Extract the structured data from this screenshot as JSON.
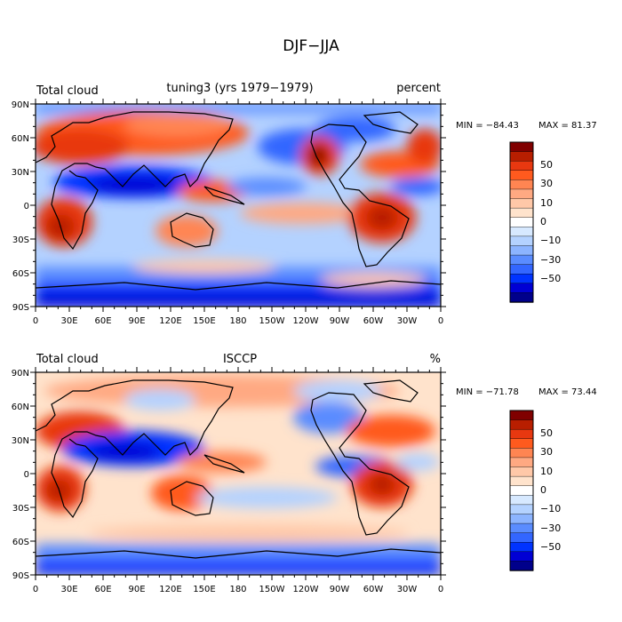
{
  "title": "DJF−JJA",
  "colors": {
    "scale": [
      "#00008b",
      "#0000d4",
      "#0033ff",
      "#3366ff",
      "#5a8cff",
      "#8cb4ff",
      "#b4d2ff",
      "#d7e9ff",
      "#ffffff",
      "#ffe3cc",
      "#ffc8a8",
      "#ffa982",
      "#ff8552",
      "#ff5a1e",
      "#e83810",
      "#b81e00",
      "#800000"
    ],
    "land_outline": "#000000"
  },
  "panels": [
    {
      "left_label": "Total cloud",
      "center_label": "tuning3 (yrs 1979−1979)",
      "right_label": "percent",
      "min_text": "MIN = −84.43",
      "max_text": "MAX =  81.37",
      "min": -84.43,
      "max": 81.37
    },
    {
      "left_label": "Total cloud",
      "center_label": "ISCCP",
      "right_label": "%",
      "min_text": "MIN = −71.78",
      "max_text": "MAX =  73.44",
      "min": -71.78,
      "max": 73.44
    }
  ],
  "x_ticks": [
    "0",
    "30E",
    "60E",
    "90E",
    "120E",
    "150E",
    "180",
    "150W",
    "120W",
    "90W",
    "60W",
    "30W",
    "0"
  ],
  "y_ticks": [
    "90N",
    "60N",
    "30N",
    "0",
    "30S",
    "60S",
    "90S"
  ],
  "colorbar_labels": [
    "50",
    "30",
    "10",
    "0",
    "−10",
    "−30",
    "−50"
  ]
}
